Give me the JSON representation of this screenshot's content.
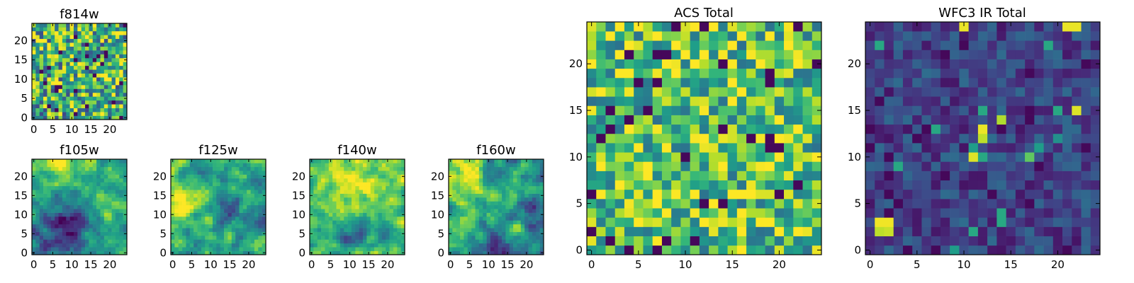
{
  "colors": {
    "colormap": "viridis",
    "viridis_stops": [
      "#440154",
      "#482878",
      "#3e4989",
      "#31688e",
      "#26828e",
      "#1f9e89",
      "#35b779",
      "#6ece58",
      "#b5de2b",
      "#fde725"
    ]
  },
  "chart_data": [
    {
      "type": "heatmap",
      "title": "f814w",
      "grid": [
        25,
        25
      ],
      "x_ticks": [
        0,
        5,
        10,
        15,
        20
      ],
      "y_ticks": [
        0,
        5,
        10,
        15,
        20
      ],
      "xlim": [
        -0.5,
        24.5
      ],
      "ylim": [
        -0.5,
        24.5
      ],
      "pattern": "noise",
      "base": 0.62,
      "spread": 0.55,
      "features": [],
      "seed": 11
    },
    {
      "type": "heatmap",
      "title": "f105w",
      "grid": [
        25,
        25
      ],
      "x_ticks": [
        0,
        5,
        10,
        15,
        20
      ],
      "y_ticks": [
        0,
        5,
        10,
        15,
        20
      ],
      "xlim": [
        -0.5,
        24.5
      ],
      "ylim": [
        -0.5,
        24.5
      ],
      "pattern": "smooth",
      "base": 0.6,
      "spread": 0.35,
      "features": [
        {
          "x": 10,
          "y": 7,
          "r": 4,
          "v": -0.45
        },
        {
          "x": 3,
          "y": 3,
          "r": 4,
          "v": -0.3
        },
        {
          "x": 8,
          "y": 24,
          "r": 3,
          "v": 0.4
        },
        {
          "x": 20,
          "y": 14,
          "r": 3,
          "v": 0.15
        }
      ],
      "seed": 23
    },
    {
      "type": "heatmap",
      "title": "f125w",
      "grid": [
        25,
        25
      ],
      "x_ticks": [
        0,
        5,
        10,
        15,
        20
      ],
      "y_ticks": [
        0,
        5,
        10,
        15,
        20
      ],
      "xlim": [
        -0.5,
        24.5
      ],
      "ylim": [
        -0.5,
        24.5
      ],
      "pattern": "smooth",
      "base": 0.62,
      "spread": 0.4,
      "features": [
        {
          "x": 3,
          "y": 13,
          "r": 3,
          "v": 0.35
        },
        {
          "x": 15,
          "y": 12,
          "r": 3,
          "v": -0.3
        },
        {
          "x": 22,
          "y": 8,
          "r": 2,
          "v": -0.35
        }
      ],
      "seed": 37
    },
    {
      "type": "heatmap",
      "title": "f140w",
      "grid": [
        25,
        25
      ],
      "x_ticks": [
        0,
        5,
        10,
        15,
        20
      ],
      "y_ticks": [
        0,
        5,
        10,
        15,
        20
      ],
      "xlim": [
        -0.5,
        24.5
      ],
      "ylim": [
        -0.5,
        24.5
      ],
      "pattern": "smooth",
      "base": 0.72,
      "spread": 0.35,
      "features": [
        {
          "x": 11,
          "y": 18,
          "r": 4,
          "v": 0.3
        },
        {
          "x": 11,
          "y": 4,
          "r": 3,
          "v": -0.4
        },
        {
          "x": 20,
          "y": 4,
          "r": 2,
          "v": -0.35
        }
      ],
      "seed": 41
    },
    {
      "type": "heatmap",
      "title": "f160w",
      "grid": [
        25,
        25
      ],
      "x_ticks": [
        0,
        5,
        10,
        15,
        20
      ],
      "y_ticks": [
        0,
        5,
        10,
        15,
        20
      ],
      "xlim": [
        -0.5,
        24.5
      ],
      "ylim": [
        -0.5,
        24.5
      ],
      "pattern": "smooth",
      "base": 0.6,
      "spread": 0.4,
      "features": [
        {
          "x": 3,
          "y": 21,
          "r": 4,
          "v": 0.35
        },
        {
          "x": 12,
          "y": 2,
          "r": 3,
          "v": -0.4
        },
        {
          "x": 22,
          "y": 10,
          "r": 3,
          "v": -0.25
        }
      ],
      "seed": 53
    },
    {
      "type": "heatmap",
      "title": "ACS Total",
      "grid": [
        25,
        25
      ],
      "x_ticks": [
        0,
        5,
        10,
        15,
        20
      ],
      "y_ticks": [
        0,
        5,
        10,
        15,
        20
      ],
      "xlim": [
        -0.5,
        24.5
      ],
      "ylim": [
        -0.5,
        24.5
      ],
      "pattern": "noise",
      "base": 0.7,
      "spread": 0.45,
      "features": [],
      "seed": 67
    },
    {
      "type": "heatmap",
      "title": "WFC3 IR Total",
      "grid": [
        25,
        25
      ],
      "x_ticks": [
        0,
        5,
        10,
        15,
        20
      ],
      "y_ticks": [
        0,
        5,
        10,
        15,
        20
      ],
      "xlim": [
        -0.5,
        24.5
      ],
      "ylim": [
        -0.5,
        24.5
      ],
      "pattern": "noise_low",
      "base": 0.2,
      "spread": 0.16,
      "features": [],
      "hotspots": [
        {
          "x": 1,
          "y": 3,
          "v": 0.98
        },
        {
          "x": 2,
          "y": 3,
          "v": 0.98
        },
        {
          "x": 1,
          "y": 2,
          "v": 0.9
        },
        {
          "x": 2,
          "y": 2,
          "v": 0.92
        },
        {
          "x": 12,
          "y": 13,
          "v": 0.97
        },
        {
          "x": 12,
          "y": 12,
          "v": 0.9
        },
        {
          "x": 11,
          "y": 11,
          "v": 0.55
        },
        {
          "x": 11,
          "y": 10,
          "v": 0.95
        },
        {
          "x": 12,
          "y": 10,
          "v": 0.6
        },
        {
          "x": 14,
          "y": 14,
          "v": 0.88
        },
        {
          "x": 17,
          "y": 10,
          "v": 0.75
        },
        {
          "x": 18,
          "y": 11,
          "v": 0.55
        },
        {
          "x": 22,
          "y": 15,
          "v": 0.95
        },
        {
          "x": 10,
          "y": 24,
          "v": 0.97
        },
        {
          "x": 21,
          "y": 24,
          "v": 0.97
        },
        {
          "x": 22,
          "y": 24,
          "v": 0.97
        },
        {
          "x": 9,
          "y": 0,
          "v": 0.55
        },
        {
          "x": 20,
          "y": 12,
          "v": 0.5
        }
      ],
      "seed": 79
    }
  ]
}
